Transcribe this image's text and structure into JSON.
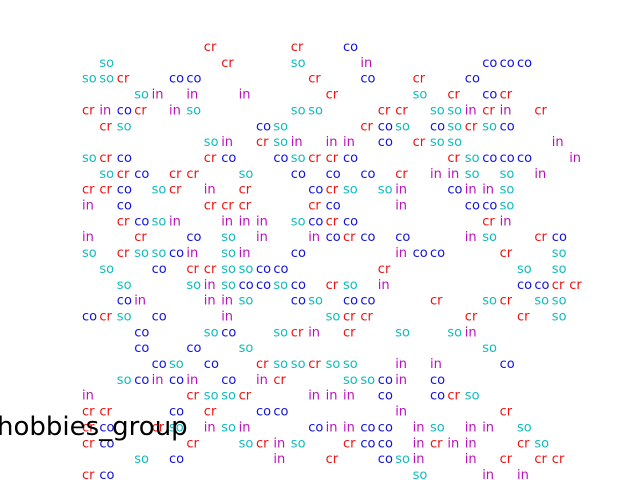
{
  "chart_data": {
    "type": "scatter",
    "title": "",
    "xlabel": "",
    "ylabel": "",
    "legend": {
      "title": "hobbies_group",
      "entries": []
    },
    "grid": false,
    "axes_visible": false,
    "xlim": [
      0,
      25
    ],
    "ylim": [
      0,
      22
    ],
    "categories": [
      {
        "code": "cr",
        "color": "#ee1111"
      },
      {
        "code": "so",
        "color": "#11bbbb"
      },
      {
        "code": "co",
        "color": "#1111dd"
      },
      {
        "code": "in",
        "color": "#bb11bb"
      }
    ],
    "cells": [
      "7:cr",
      "12:cr",
      "15:co",
      "1:so",
      "8:cr",
      "12:so",
      "16:in",
      "23:co",
      "24:co",
      "25:co",
      "0:so",
      "1:so",
      "2:cr",
      "5:co",
      "6:co",
      "13:cr",
      "16:co",
      "19:cr",
      "22:co",
      "3:so",
      "4:in",
      "6:in",
      "9:in",
      "14:cr",
      "19:so",
      "21:cr",
      "23:co",
      "24:cr",
      "0:cr",
      "1:in",
      "2:co",
      "3:cr",
      "5:in",
      "6:so",
      "12:so",
      "13:so",
      "17:cr",
      "18:cr",
      "20:so",
      "21:so",
      "22:in",
      "23:cr",
      "24:in",
      "26:cr",
      "1:cr",
      "2:so",
      "10:co",
      "11:so",
      "16:cr",
      "17:co",
      "18:so",
      "20:co",
      "21:so",
      "22:cr",
      "23:so",
      "24:co",
      "7:so",
      "8:in",
      "10:cr",
      "11:so",
      "12:in",
      "14:in",
      "15:in",
      "17:co",
      "19:cr",
      "20:so",
      "21:so",
      "27:in",
      "0:so",
      "1:cr",
      "2:co",
      "7:cr",
      "8:co",
      "11:co",
      "12:so",
      "13:cr",
      "14:cr",
      "15:co",
      "21:cr",
      "22:so",
      "23:co",
      "24:co",
      "25:co",
      "28:in",
      "1:so",
      "2:cr",
      "3:co",
      "5:cr",
      "6:cr",
      "9:so",
      "12:co",
      "14:co",
      "16:co",
      "18:cr",
      "20:in",
      "21:in",
      "22:so",
      "24:so",
      "26:in",
      "0:cr",
      "1:cr",
      "2:co",
      "4:so",
      "5:cr",
      "7:in",
      "9:cr",
      "13:co",
      "14:cr",
      "15:so",
      "17:so",
      "18:in",
      "21:co",
      "22:in",
      "23:in",
      "24:so",
      "0:in",
      "2:co",
      "7:cr",
      "8:cr",
      "9:cr",
      "13:cr",
      "14:co",
      "18:in",
      "22:co",
      "23:co",
      "24:so",
      "2:cr",
      "3:co",
      "4:so",
      "5:in",
      "8:in",
      "9:in",
      "10:in",
      "12:so",
      "13:co",
      "14:cr",
      "15:co",
      "23:cr",
      "24:in",
      "0:in",
      "3:cr",
      "6:co",
      "8:so",
      "10:in",
      "13:in",
      "14:co",
      "15:cr",
      "16:co",
      "18:co",
      "22:in",
      "23:so",
      "26:cr",
      "27:co",
      "0:so",
      "2:cr",
      "3:so",
      "4:so",
      "5:co",
      "6:in",
      "8:so",
      "9:in",
      "12:co",
      "18:in",
      "19:co",
      "20:co",
      "24:cr",
      "27:so",
      "1:so",
      "4:co",
      "6:cr",
      "7:cr",
      "8:so",
      "9:so",
      "10:co",
      "11:co",
      "17:cr",
      "25:so",
      "27:so",
      "2:so",
      "6:so",
      "7:in",
      "8:so",
      "9:co",
      "10:co",
      "11:so",
      "12:co",
      "14:cr",
      "15:so",
      "17:in",
      "25:co",
      "26:co",
      "27:cr",
      "28:cr",
      "2:co",
      "3:in",
      "7:in",
      "8:in",
      "9:so",
      "12:co",
      "13:so",
      "15:co",
      "16:co",
      "20:cr",
      "23:so",
      "24:cr",
      "26:so",
      "27:so",
      "0:co",
      "1:cr",
      "2:so",
      "4:co",
      "8:in",
      "14:so",
      "15:cr",
      "16:cr",
      "22:cr",
      "25:cr",
      "27:so",
      "3:co",
      "7:so",
      "8:co",
      "11:so",
      "12:cr",
      "13:in",
      "15:cr",
      "18:so",
      "21:so",
      "22:in",
      "3:co",
      "6:co",
      "9:so",
      "23:so",
      "4:co",
      "5:so",
      "7:co",
      "10:cr",
      "11:so",
      "12:so",
      "13:cr",
      "14:so",
      "15:so",
      "18:in",
      "20:in",
      "24:co",
      "2:so",
      "3:co",
      "4:in",
      "5:co",
      "6:in",
      "8:co",
      "10:in",
      "11:cr",
      "15:so",
      "16:so",
      "17:co",
      "18:in",
      "20:co",
      "0:in",
      "6:cr",
      "7:so",
      "8:so",
      "9:cr",
      "13:in",
      "14:in",
      "15:in",
      "17:co",
      "20:co",
      "21:cr",
      "22:so",
      "0:cr",
      "1:cr",
      "5:co",
      "7:cr",
      "10:co",
      "11:co",
      "18:in",
      "24:cr",
      "0:cr",
      "1:co",
      "4:cr",
      "5:so",
      "7:in",
      "8:so",
      "9:in",
      "13:co",
      "14:in",
      "15:in",
      "16:co",
      "17:co",
      "19:in",
      "20:so",
      "22:in",
      "23:in",
      "25:so",
      "0:cr",
      "1:co",
      "6:cr",
      "9:so",
      "10:cr",
      "11:in",
      "12:so",
      "15:cr",
      "16:co",
      "17:co",
      "19:in",
      "20:cr",
      "21:in",
      "22:in",
      "25:cr",
      "26:so",
      "3:so",
      "5:co",
      "11:in",
      "14:cr",
      "17:co",
      "18:so",
      "19:in",
      "22:in",
      "24:cr",
      "26:cr",
      "27:cr",
      "0:cr",
      "1:co",
      "19:so",
      "23:in",
      "25:in"
    ]
  }
}
